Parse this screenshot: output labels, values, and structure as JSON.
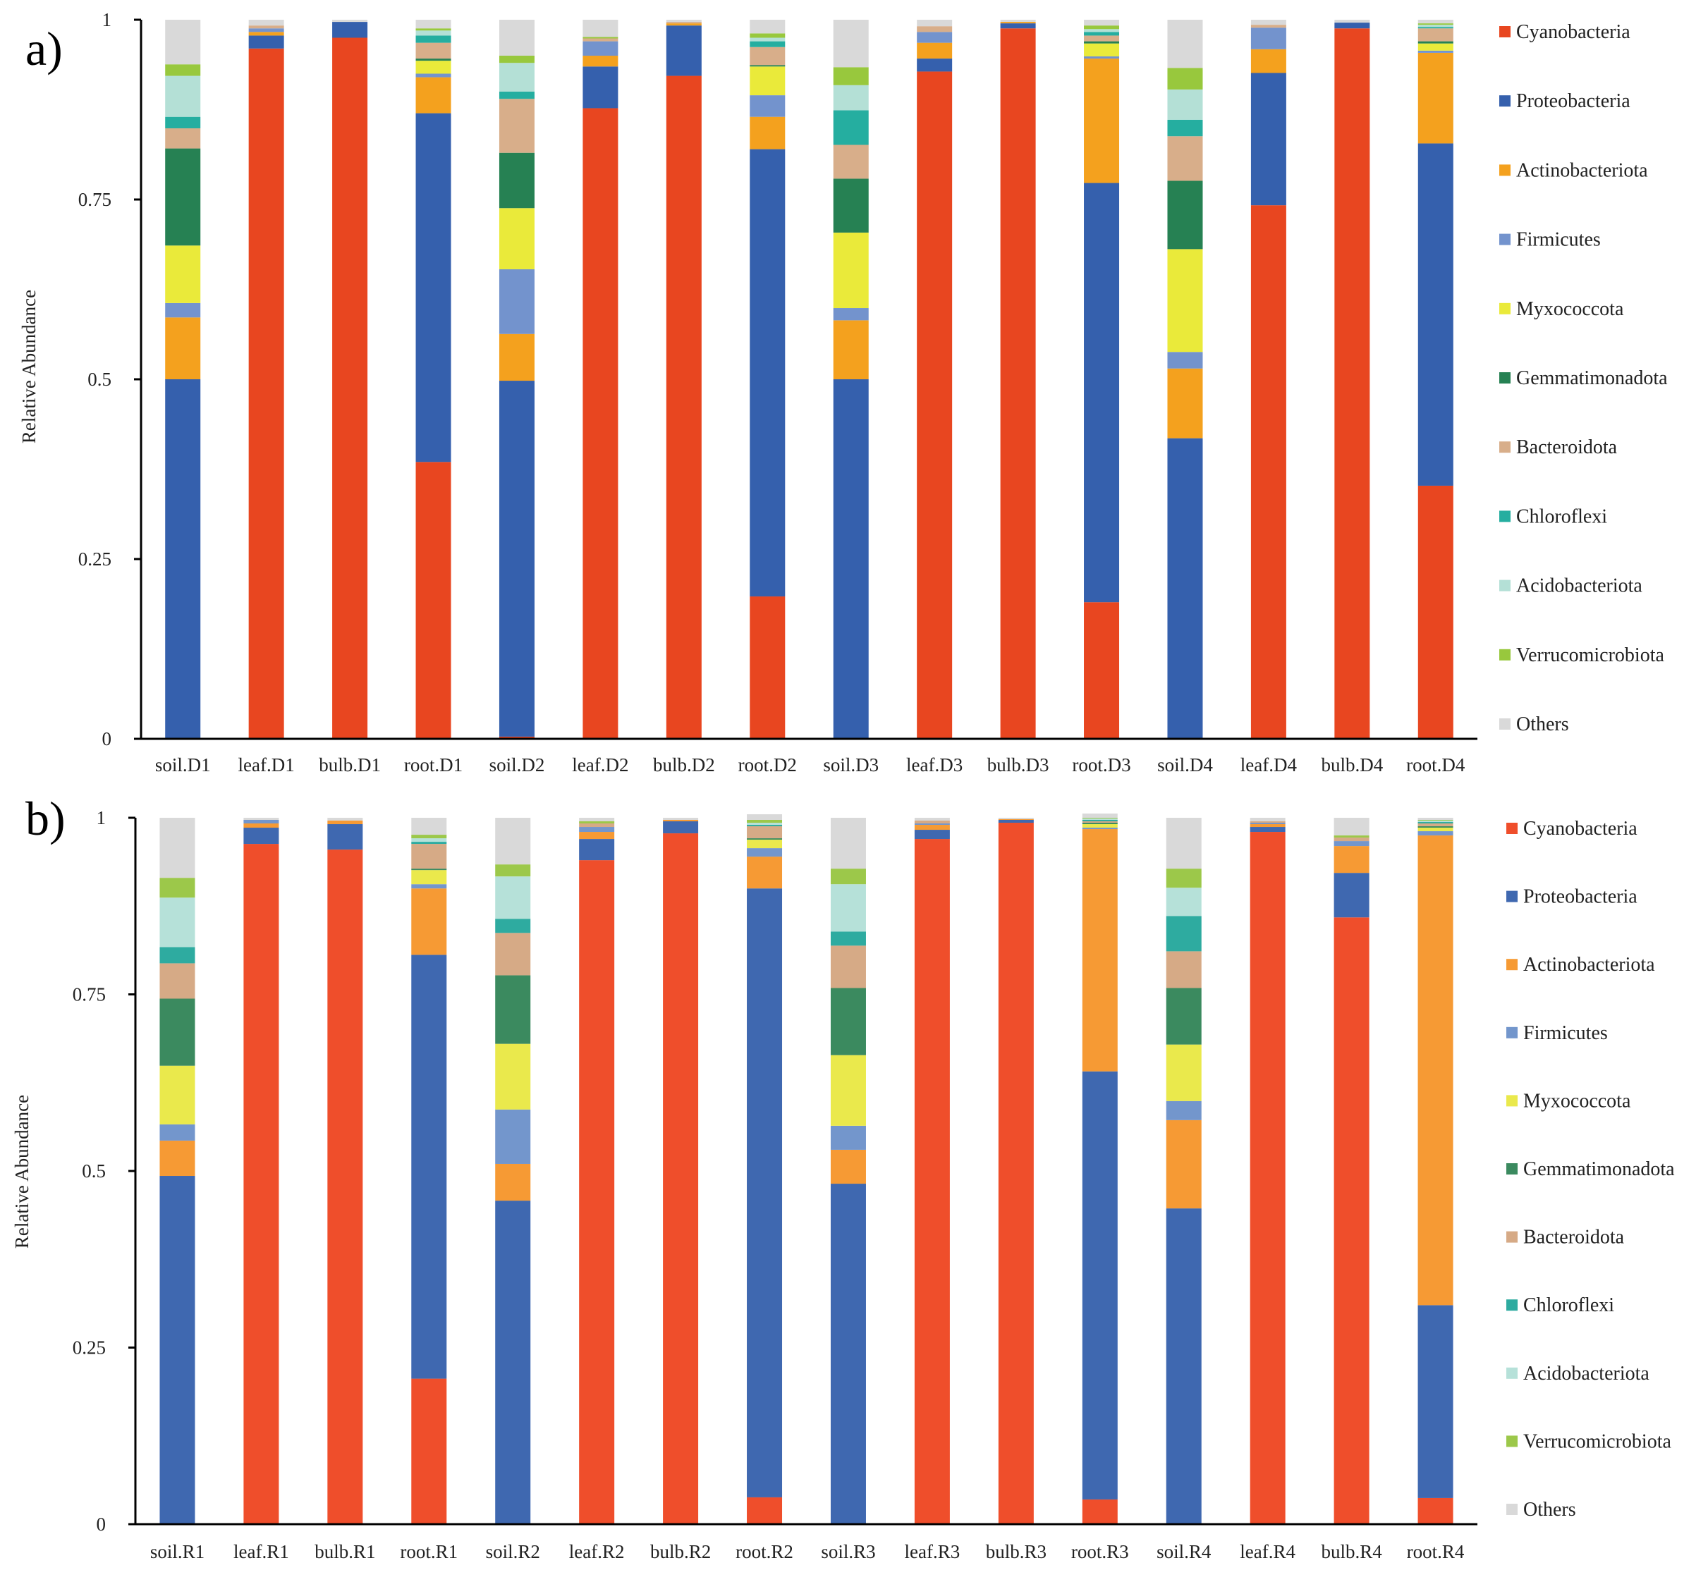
{
  "series_names": [
    "Cyanobacteria",
    "Proteobacteria",
    "Actinobacteriota",
    "Firmicutes",
    "Myxococcota",
    "Gemmatimonadota",
    "Bacteroidota",
    "Chloroflexi",
    "Acidobacteriota",
    "Verrucomicrobiota",
    "Others"
  ],
  "chart_data": [
    {
      "type": "bar",
      "stacked": true,
      "panel_label": "a)",
      "title": "",
      "xlabel": "",
      "ylabel": "Relative Abundance",
      "ylim": [
        0,
        1
      ],
      "yticks": [
        0,
        0.25,
        0.5,
        0.75,
        1
      ],
      "ytick_labels": [
        "0",
        "0.25",
        "0.5",
        "0.75",
        "1"
      ],
      "legend_position": "right",
      "categories": [
        "soil.D1",
        "leaf.D1",
        "bulb.D1",
        "root.D1",
        "soil.D2",
        "leaf.D2",
        "bulb.D2",
        "root.D2",
        "soil.D3",
        "leaf.D3",
        "bulb.D3",
        "root.D3",
        "soil.D4",
        "leaf.D4",
        "bulb.D4",
        "root.D4"
      ],
      "colors": [
        "#e84620",
        "#3560ad",
        "#f4a11e",
        "#7393cd",
        "#eaea3a",
        "#268153",
        "#d8ae8a",
        "#25aea0",
        "#b4e0d6",
        "#98c83d",
        "#d9d9d9"
      ],
      "series": [
        {
          "name": "Cyanobacteria",
          "values": [
            0,
            0.96,
            0.975,
            0.385,
            0.003,
            0.877,
            0.922,
            0.198,
            0,
            0.928,
            0.988,
            0.19,
            0,
            0.742,
            0.988,
            0.352
          ]
        },
        {
          "name": "Proteobacteria",
          "values": [
            0.5,
            0.018,
            0.022,
            0.485,
            0.495,
            0.058,
            0.07,
            0.622,
            0.5,
            0.018,
            0.007,
            0.583,
            0.418,
            0.184,
            0.008,
            0.476
          ]
        },
        {
          "name": "Actinobacteriota",
          "values": [
            0.086,
            0.005,
            0,
            0.05,
            0.065,
            0.015,
            0.003,
            0.045,
            0.082,
            0.022,
            0.002,
            0.173,
            0.097,
            0.033,
            0,
            0.126
          ]
        },
        {
          "name": "Firmicutes",
          "values": [
            0.02,
            0.005,
            0,
            0.005,
            0.09,
            0.02,
            0,
            0.03,
            0.017,
            0.015,
            0,
            0.003,
            0.023,
            0.03,
            0,
            0.003
          ]
        },
        {
          "name": "Myxococcota",
          "values": [
            0.08,
            0,
            0,
            0.018,
            0.085,
            0,
            0,
            0.04,
            0.105,
            0,
            0,
            0.018,
            0.143,
            0,
            0,
            0.01
          ]
        },
        {
          "name": "Gemmatimonadota",
          "values": [
            0.135,
            0,
            0,
            0.003,
            0.077,
            0,
            0,
            0.002,
            0.075,
            0,
            0,
            0.003,
            0.095,
            0,
            0,
            0.003
          ]
        },
        {
          "name": "Bacteroidota",
          "values": [
            0.028,
            0.004,
            0,
            0.022,
            0.075,
            0.004,
            0.002,
            0.025,
            0.047,
            0.008,
            0,
            0.008,
            0.062,
            0.004,
            0,
            0.018
          ]
        },
        {
          "name": "Chloroflexi",
          "values": [
            0.016,
            0,
            0,
            0.01,
            0.01,
            0,
            0,
            0.008,
            0.048,
            0,
            0,
            0.005,
            0.023,
            0,
            0,
            0.002
          ]
        },
        {
          "name": "Acidobacteriota",
          "values": [
            0.057,
            0,
            0,
            0.007,
            0.04,
            0,
            0,
            0.005,
            0.035,
            0,
            0,
            0.004,
            0.042,
            0,
            0,
            0.003
          ]
        },
        {
          "name": "Verrucomicrobiota",
          "values": [
            0.016,
            0,
            0,
            0.003,
            0.01,
            0.002,
            0,
            0.006,
            0.025,
            0,
            0,
            0.005,
            0.03,
            0,
            0,
            0.002
          ]
        },
        {
          "name": "Others",
          "values": [
            0.062,
            0.008,
            0.003,
            0.012,
            0.05,
            0.024,
            0.003,
            0.019,
            0.066,
            0.009,
            0.003,
            0.008,
            0.067,
            0.007,
            0.004,
            0.005
          ]
        }
      ]
    },
    {
      "type": "bar",
      "stacked": true,
      "panel_label": "b)",
      "title": "",
      "xlabel": "",
      "ylabel": "Relative Abundance",
      "ylim": [
        0,
        1
      ],
      "yticks": [
        0,
        0.25,
        0.5,
        0.75,
        1
      ],
      "ytick_labels": [
        "0",
        "0.25",
        "0.5",
        "0.75",
        "1"
      ],
      "legend_position": "right",
      "categories": [
        "soil.R1",
        "leaf.R1",
        "bulb.R1",
        "root.R1",
        "soil.R2",
        "leaf.R2",
        "bulb.R2",
        "root.R2",
        "soil.R3",
        "leaf.R3",
        "bulb.R3",
        "root.R3",
        "soil.R4",
        "leaf.R4",
        "bulb.R4",
        "root.R4"
      ],
      "colors": [
        "#ef4e2b",
        "#3f68b0",
        "#f69a34",
        "#7396cc",
        "#eae94c",
        "#3b8a5f",
        "#d6aa86",
        "#2eaba0",
        "#b6e1d9",
        "#9cc84a",
        "#d9d9d9"
      ],
      "series": [
        {
          "name": "Cyanobacteria",
          "values": [
            0,
            0.963,
            0.955,
            0.206,
            0,
            0.94,
            0.978,
            0.038,
            0,
            0.97,
            0.993,
            0.035,
            0,
            0.98,
            0.859,
            0.037
          ]
        },
        {
          "name": "Proteobacteria",
          "values": [
            0.493,
            0.023,
            0.036,
            0.6,
            0.458,
            0.03,
            0.017,
            0.862,
            0.482,
            0.013,
            0.004,
            0.606,
            0.447,
            0.007,
            0.063,
            0.273
          ]
        },
        {
          "name": "Actinobacteriota",
          "values": [
            0.05,
            0.006,
            0.005,
            0.094,
            0.052,
            0.01,
            0.002,
            0.045,
            0.048,
            0.007,
            0.001,
            0.343,
            0.125,
            0.004,
            0.038,
            0.665
          ]
        },
        {
          "name": "Firmicutes",
          "values": [
            0.023,
            0.005,
            0,
            0.006,
            0.077,
            0.007,
            0,
            0.012,
            0.034,
            0.002,
            0,
            0.002,
            0.027,
            0.002,
            0.007,
            0.006
          ]
        },
        {
          "name": "Myxococcota",
          "values": [
            0.083,
            0,
            0,
            0.02,
            0.093,
            0,
            0,
            0.012,
            0.1,
            0,
            0,
            0.005,
            0.08,
            0,
            0,
            0.005
          ]
        },
        {
          "name": "Gemmatimonadota",
          "values": [
            0.095,
            0,
            0,
            0.002,
            0.097,
            0,
            0,
            0.002,
            0.095,
            0,
            0,
            0.002,
            0.08,
            0,
            0,
            0.002
          ]
        },
        {
          "name": "Bacteroidota",
          "values": [
            0.05,
            0,
            0,
            0.035,
            0.06,
            0.005,
            0,
            0.017,
            0.06,
            0.004,
            0,
            0.002,
            0.052,
            0.002,
            0.005,
            0.004
          ]
        },
        {
          "name": "Chloroflexi",
          "values": [
            0.023,
            0,
            0,
            0.003,
            0.02,
            0,
            0,
            0.002,
            0.02,
            0,
            0,
            0.002,
            0.05,
            0,
            0,
            0.002
          ]
        },
        {
          "name": "Acidobacteriota",
          "values": [
            0.07,
            0,
            0,
            0.005,
            0.06,
            0,
            0,
            0.003,
            0.067,
            0,
            0,
            0.002,
            0.04,
            0,
            0,
            0.002
          ]
        },
        {
          "name": "Verrucomicrobiota",
          "values": [
            0.028,
            0,
            0,
            0.005,
            0.017,
            0.003,
            0,
            0.004,
            0.022,
            0,
            0,
            0.001,
            0.027,
            0,
            0.003,
            0.001
          ]
        },
        {
          "name": "Others",
          "values": [
            0.085,
            0.003,
            0.004,
            0.024,
            0.066,
            0.005,
            0.003,
            0.008,
            0.072,
            0.004,
            0.002,
            0.006,
            0.072,
            0.005,
            0.025,
            0.003
          ]
        }
      ]
    }
  ]
}
